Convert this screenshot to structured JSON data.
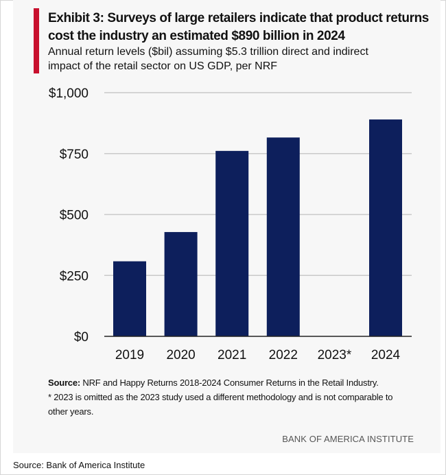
{
  "exhibit": {
    "title_line1": "Exhibit 3: Surveys of large retailers indicate that product returns",
    "title_line2": "cost the industry an estimated $890 billion in 2024",
    "subtitle_line1": "Annual return levels ($bil) assuming $5.3 trillion direct and indirect",
    "subtitle_line2": "impact of the retail sector on US GDP, per NRF",
    "source_label": "Source:",
    "source_text": " NRF and Happy Returns 2018-2024 Consumer Returns in the Retail Industry.",
    "footnote_line1": "* 2023 is omitted as the 2023 study used a different methodology and is not comparable to",
    "footnote_line2": "other years.",
    "brand": "BANK OF AMERICA INSTITUTE"
  },
  "caption": "Source: Bank of America Institute",
  "colors": {
    "accent": "#c8102e",
    "bar": "#0d1f5c",
    "grid": "#c9c9c9",
    "axis": "#222222",
    "panel_background": "#f7f7f7"
  },
  "chart_data": {
    "type": "bar",
    "categories": [
      "2019",
      "2020",
      "2021",
      "2022",
      "2023*",
      "2024"
    ],
    "values": [
      308,
      428,
      761,
      816,
      null,
      890
    ],
    "ylim": [
      0,
      1000
    ],
    "yticks": [
      0,
      250,
      500,
      750,
      1000
    ],
    "ytick_labels": [
      "$0",
      "$250",
      "$500",
      "$750",
      "$1,000"
    ],
    "grid": true,
    "legend": "none"
  }
}
